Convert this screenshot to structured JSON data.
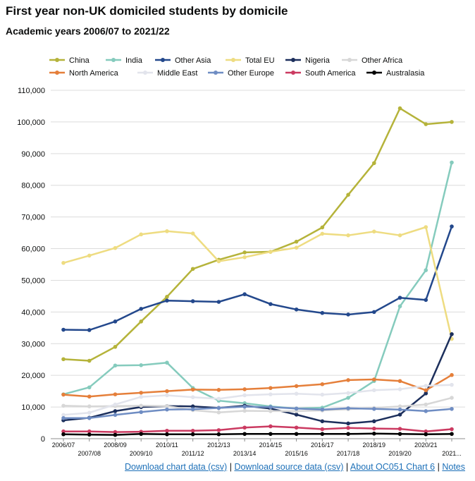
{
  "header": {
    "title": "First year non-UK domiciled students by domicile",
    "subtitle": "Academic years 2006/07 to 2021/22"
  },
  "footer": {
    "link_chart_csv": "Download chart data (csv)",
    "separator": "|",
    "link_source_csv": "Download source data (csv)",
    "link_about": "About OC051 Chart 6",
    "link_notes": "Notes"
  },
  "chart_data": {
    "type": "line",
    "categories": [
      "2006/07",
      "2007/08",
      "2008/09",
      "2009/10",
      "2010/11",
      "2011/12",
      "2012/13",
      "2013/14",
      "2014/15",
      "2015/16",
      "2016/17",
      "2017/18",
      "2018/19",
      "2019/20",
      "2020/21",
      "2021..."
    ],
    "ylim": [
      0,
      110000
    ],
    "yticks": [
      0,
      10000,
      20000,
      30000,
      40000,
      50000,
      60000,
      70000,
      80000,
      90000,
      100000,
      110000
    ],
    "ytick_labels": [
      "0",
      "10,000",
      "20,000",
      "30,000",
      "40,000",
      "50,000",
      "60,000",
      "70,000",
      "80,000",
      "90,000",
      "100,000",
      "110,000"
    ],
    "grid": true,
    "legend_position": "top",
    "series": [
      {
        "name": "China",
        "color": "#b5b33a",
        "values": [
          25100,
          24600,
          29000,
          37000,
          44800,
          53600,
          56500,
          58800,
          59000,
          62200,
          66700,
          77000,
          87000,
          104300,
          99300,
          100000
        ]
      },
      {
        "name": "India",
        "color": "#85cbbd",
        "values": [
          14000,
          16200,
          23100,
          23200,
          24000,
          16000,
          12000,
          11200,
          10200,
          9500,
          9800,
          12900,
          18200,
          41800,
          53200,
          87200
        ]
      },
      {
        "name": "Other Asia",
        "color": "#23488c",
        "values": [
          34400,
          34300,
          37000,
          41000,
          43600,
          43400,
          43200,
          45600,
          42500,
          40800,
          39700,
          39200,
          40000,
          44500,
          43800,
          67000
        ]
      },
      {
        "name": "Total EU",
        "color": "#eedc81",
        "values": [
          55500,
          57800,
          60200,
          64500,
          65500,
          64800,
          56000,
          57300,
          59000,
          60300,
          64700,
          64200,
          65400,
          64200,
          66800,
          31500
        ]
      },
      {
        "name": "Nigeria",
        "color": "#1c2f5c",
        "values": [
          5800,
          6600,
          8700,
          10000,
          10300,
          10200,
          9700,
          10400,
          9500,
          7600,
          5500,
          4800,
          5500,
          7600,
          14300,
          33000
        ]
      },
      {
        "name": "Other Africa",
        "color": "#d7d7d7",
        "values": [
          10400,
          10200,
          10300,
          10400,
          10300,
          9000,
          8300,
          8800,
          8700,
          8700,
          8900,
          9300,
          9700,
          10200,
          10800,
          12900
        ]
      },
      {
        "name": "North America",
        "color": "#e57f3a",
        "values": [
          13900,
          13300,
          14000,
          14500,
          15000,
          15500,
          15400,
          15600,
          16000,
          16600,
          17200,
          18500,
          18700,
          18200,
          15300,
          20100
        ]
      },
      {
        "name": "Middle East",
        "color": "#e2e4ec",
        "values": [
          7500,
          8200,
          10800,
          13200,
          13700,
          13100,
          12600,
          13700,
          14000,
          14200,
          13900,
          14400,
          15300,
          15600,
          16700,
          17000
        ]
      },
      {
        "name": "Other Europe",
        "color": "#6f8dc3",
        "values": [
          6500,
          6500,
          7500,
          8400,
          9200,
          9300,
          9700,
          10100,
          10000,
          9500,
          9200,
          9600,
          9400,
          9200,
          8700,
          9400
        ]
      },
      {
        "name": "South America",
        "color": "#cb3a61",
        "values": [
          2300,
          2300,
          2100,
          2200,
          2500,
          2500,
          2700,
          3500,
          3900,
          3500,
          3000,
          3400,
          3200,
          3100,
          2300,
          3000
        ]
      },
      {
        "name": "Australasia",
        "color": "#000000",
        "values": [
          1400,
          1300,
          1200,
          1500,
          1400,
          1400,
          1400,
          1500,
          1500,
          1500,
          1500,
          1500,
          1600,
          1500,
          1400,
          1500
        ]
      }
    ]
  }
}
